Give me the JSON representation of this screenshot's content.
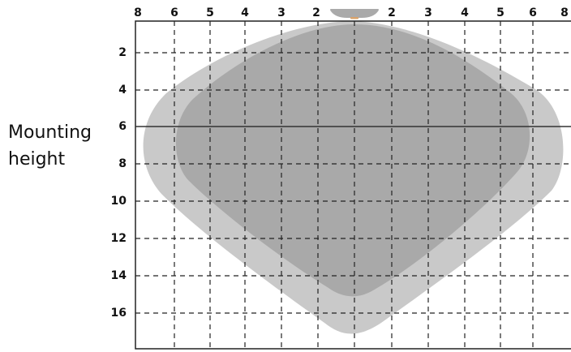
{
  "diagram": {
    "top_axis_labels": [
      "8",
      "6",
      "5",
      "4",
      "3",
      "2",
      "2",
      "3",
      "4",
      "5",
      "6",
      "8"
    ],
    "left_axis_labels": [
      "2",
      "4",
      "6",
      "8",
      "10",
      "12",
      "14",
      "16"
    ],
    "side_label_line1": "Mounting",
    "side_label_line2": "height",
    "colors": {
      "outer_zone": "#c9c9c9",
      "inner_zone": "#a9a9a9",
      "grid": "#222222",
      "reference_line": "#333333",
      "fixture": "#aaaaaa",
      "fixture_accent": "#d9a36b"
    }
  }
}
